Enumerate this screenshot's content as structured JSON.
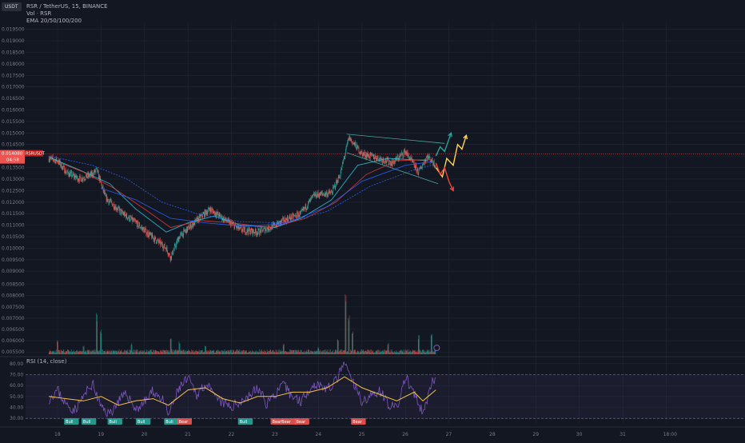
{
  "header": {
    "symbol_line": "RSR / TetherUS, 15, BINANCE",
    "vol_line": "Vol · RSR",
    "ema_line": "EMA 20/50/100/200",
    "currency_badge": "USDT",
    "rsi_title": "RSI (14, close)"
  },
  "colors": {
    "background": "#131722",
    "grid": "#1f2431",
    "up": "#26a69a",
    "down": "#ef5350",
    "ema_teal": "#26c6da",
    "ema_blue": "#2962ff",
    "ema_red": "#e53935",
    "rsi_line": "#7e57c2",
    "rsi_signal": "#f5c342",
    "arrow_yellow": "#ffd54f",
    "arrow_green": "#26a69a",
    "arrow_red": "#f44336"
  },
  "price_markers": {
    "current_price": "0.014088",
    "countdown": "04:58",
    "symbol_tag": "RSRUSDT"
  },
  "chart_data": [
    {
      "type": "candlestick",
      "title": "RSR / TetherUS, 15, BINANCE",
      "y_ticks": [
        "0.019500",
        "0.019000",
        "0.018500",
        "0.018000",
        "0.017500",
        "0.017000",
        "0.016500",
        "0.016000",
        "0.015500",
        "0.015000",
        "0.014500",
        "0.014000",
        "0.013500",
        "0.013000",
        "0.012500",
        "0.012000",
        "0.011500",
        "0.011000",
        "0.010500",
        "0.010000",
        "0.009500",
        "0.009000"
      ],
      "ylim": [
        0.0088,
        0.0198
      ],
      "x_ticks": [
        "18",
        "19",
        "20",
        "21",
        "22",
        "23",
        "24",
        "25",
        "26",
        "27",
        "28",
        "29",
        "30",
        "31",
        "18:00"
      ],
      "close_path": {
        "points": [
          {
            "x": 17.8,
            "y": 0.0139
          },
          {
            "x": 18.0,
            "y": 0.0138
          },
          {
            "x": 18.2,
            "y": 0.0133
          },
          {
            "x": 18.5,
            "y": 0.013
          },
          {
            "x": 18.8,
            "y": 0.0132
          },
          {
            "x": 18.9,
            "y": 0.0134
          },
          {
            "x": 19.1,
            "y": 0.0122
          },
          {
            "x": 19.5,
            "y": 0.0115
          },
          {
            "x": 19.8,
            "y": 0.0111
          },
          {
            "x": 20.1,
            "y": 0.0106
          },
          {
            "x": 20.5,
            "y": 0.01
          },
          {
            "x": 20.6,
            "y": 0.0096
          },
          {
            "x": 20.8,
            "y": 0.0105
          },
          {
            "x": 21.2,
            "y": 0.0112
          },
          {
            "x": 21.5,
            "y": 0.0117
          },
          {
            "x": 21.8,
            "y": 0.0113
          },
          {
            "x": 22.2,
            "y": 0.0108
          },
          {
            "x": 22.6,
            "y": 0.0107
          },
          {
            "x": 22.9,
            "y": 0.0109
          },
          {
            "x": 23.2,
            "y": 0.0112
          },
          {
            "x": 23.6,
            "y": 0.0115
          },
          {
            "x": 23.9,
            "y": 0.0123
          },
          {
            "x": 24.3,
            "y": 0.0124
          },
          {
            "x": 24.5,
            "y": 0.0132
          },
          {
            "x": 24.7,
            "y": 0.0148
          },
          {
            "x": 25.0,
            "y": 0.0141
          },
          {
            "x": 25.4,
            "y": 0.0139
          },
          {
            "x": 25.7,
            "y": 0.0137
          },
          {
            "x": 26.0,
            "y": 0.0142
          },
          {
            "x": 26.3,
            "y": 0.0133
          },
          {
            "x": 26.5,
            "y": 0.014
          },
          {
            "x": 26.7,
            "y": 0.0136
          }
        ]
      },
      "ema_lines": [
        {
          "points": [
            {
              "x": 17.8,
              "y": 0.01395
            },
            {
              "x": 18.5,
              "y": 0.0134
            },
            {
              "x": 19.2,
              "y": 0.0128
            },
            {
              "x": 19.8,
              "y": 0.0117
            },
            {
              "x": 20.5,
              "y": 0.0107
            },
            {
              "x": 21.0,
              "y": 0.0111
            },
            {
              "x": 21.6,
              "y": 0.0114
            },
            {
              "x": 22.2,
              "y": 0.011
            },
            {
              "x": 23.0,
              "y": 0.0109
            },
            {
              "x": 23.6,
              "y": 0.0113
            },
            {
              "x": 24.3,
              "y": 0.0121
            },
            {
              "x": 24.9,
              "y": 0.0136
            },
            {
              "x": 25.6,
              "y": 0.0139
            },
            {
              "x": 26.5,
              "y": 0.0138
            }
          ]
        },
        {
          "points": [
            {
              "x": 17.8,
              "y": 0.0139
            },
            {
              "x": 18.6,
              "y": 0.0133
            },
            {
              "x": 19.3,
              "y": 0.0126
            },
            {
              "x": 20.0,
              "y": 0.0117
            },
            {
              "x": 20.6,
              "y": 0.0109
            },
            {
              "x": 21.3,
              "y": 0.0112
            },
            {
              "x": 22.0,
              "y": 0.0111
            },
            {
              "x": 22.9,
              "y": 0.0109
            },
            {
              "x": 23.7,
              "y": 0.0113
            },
            {
              "x": 24.4,
              "y": 0.012
            },
            {
              "x": 25.1,
              "y": 0.0132
            },
            {
              "x": 25.8,
              "y": 0.0138
            },
            {
              "x": 26.6,
              "y": 0.01385
            }
          ]
        },
        {
          "points": [
            {
              "x": 19.0,
              "y": 0.0126
            },
            {
              "x": 19.8,
              "y": 0.0121
            },
            {
              "x": 20.6,
              "y": 0.0113
            },
            {
              "x": 21.4,
              "y": 0.0111
            },
            {
              "x": 22.3,
              "y": 0.01095
            },
            {
              "x": 23.2,
              "y": 0.01105
            },
            {
              "x": 24.2,
              "y": 0.0118
            },
            {
              "x": 25.0,
              "y": 0.0129
            },
            {
              "x": 26.0,
              "y": 0.0136
            },
            {
              "x": 26.6,
              "y": 0.01375
            }
          ]
        },
        {
          "points": [
            {
              "x": 17.8,
              "y": 0.014
            },
            {
              "x": 18.8,
              "y": 0.0136
            },
            {
              "x": 19.6,
              "y": 0.013
            },
            {
              "x": 20.4,
              "y": 0.012
            },
            {
              "x": 21.2,
              "y": 0.0115
            },
            {
              "x": 22.2,
              "y": 0.01115
            },
            {
              "x": 23.2,
              "y": 0.0111
            },
            {
              "x": 24.2,
              "y": 0.0116
            },
            {
              "x": 25.2,
              "y": 0.0127
            },
            {
              "x": 26.2,
              "y": 0.0134
            },
            {
              "x": 26.6,
              "y": 0.0136
            }
          ]
        }
      ],
      "trend_lines": [
        {
          "from": {
            "x": 24.65,
            "y": 0.01495
          },
          "to": {
            "x": 26.9,
            "y": 0.01455
          }
        },
        {
          "from": {
            "x": 24.65,
            "y": 0.01415
          },
          "to": {
            "x": 26.75,
            "y": 0.0128
          }
        }
      ],
      "projections": [
        {
          "points": [
            {
              "x": 26.7,
              "y": 0.014
            },
            {
              "x": 26.8,
              "y": 0.0144
            },
            {
              "x": 26.9,
              "y": 0.0142
            },
            {
              "x": 27.05,
              "y": 0.015
            }
          ]
        },
        {
          "points": [
            {
              "x": 26.7,
              "y": 0.0135
            },
            {
              "x": 26.85,
              "y": 0.0131
            },
            {
              "x": 26.95,
              "y": 0.0139
            },
            {
              "x": 27.1,
              "y": 0.0136
            },
            {
              "x": 27.2,
              "y": 0.0145
            },
            {
              "x": 27.3,
              "y": 0.0143
            },
            {
              "x": 27.4,
              "y": 0.0149
            }
          ]
        },
        {
          "points": [
            {
              "x": 26.7,
              "y": 0.0137
            },
            {
              "x": 26.8,
              "y": 0.0132
            },
            {
              "x": 26.9,
              "y": 0.0135
            },
            {
              "x": 27.0,
              "y": 0.0129
            },
            {
              "x": 27.1,
              "y": 0.0125
            }
          ]
        }
      ],
      "last_price": 0.014088
    },
    {
      "type": "bar",
      "title": "Vol · RSR",
      "y_ticks": [
        "0.008500",
        "0.008000",
        "0.007500",
        "0.007000",
        "0.006500",
        "0.006000",
        "0.005500"
      ],
      "ylim": [
        0.0054,
        0.0087
      ],
      "spikes": [
        {
          "x": 18.0,
          "v": 0.2
        },
        {
          "x": 18.6,
          "v": 0.12
        },
        {
          "x": 18.9,
          "v": 0.55
        },
        {
          "x": 19.0,
          "v": 0.35
        },
        {
          "x": 19.7,
          "v": 0.15
        },
        {
          "x": 20.6,
          "v": 0.22
        },
        {
          "x": 20.8,
          "v": 0.18
        },
        {
          "x": 21.4,
          "v": 0.12
        },
        {
          "x": 23.2,
          "v": 0.15
        },
        {
          "x": 24.0,
          "v": 0.1
        },
        {
          "x": 24.45,
          "v": 0.2
        },
        {
          "x": 24.62,
          "v": 0.85
        },
        {
          "x": 24.7,
          "v": 0.55
        },
        {
          "x": 24.78,
          "v": 0.3
        },
        {
          "x": 25.6,
          "v": 0.15
        },
        {
          "x": 26.3,
          "v": 0.25
        },
        {
          "x": 26.6,
          "v": 0.3
        }
      ]
    },
    {
      "type": "line",
      "title": "RSI (14, close)",
      "y_ticks": [
        "80.00",
        "70.00",
        "60.00",
        "50.00",
        "40.00",
        "30.00"
      ],
      "ylim": [
        25,
        85
      ],
      "bands": [
        30,
        70
      ],
      "rsi_series": {
        "points": [
          {
            "x": 17.8,
            "y": 48
          },
          {
            "x": 18.0,
            "y": 56
          },
          {
            "x": 18.2,
            "y": 42
          },
          {
            "x": 18.4,
            "y": 38
          },
          {
            "x": 18.6,
            "y": 50
          },
          {
            "x": 18.8,
            "y": 62
          },
          {
            "x": 19.0,
            "y": 40
          },
          {
            "x": 19.2,
            "y": 34
          },
          {
            "x": 19.4,
            "y": 46
          },
          {
            "x": 19.6,
            "y": 52
          },
          {
            "x": 19.8,
            "y": 38
          },
          {
            "x": 20.0,
            "y": 45
          },
          {
            "x": 20.2,
            "y": 55
          },
          {
            "x": 20.4,
            "y": 48
          },
          {
            "x": 20.55,
            "y": 33
          },
          {
            "x": 20.8,
            "y": 58
          },
          {
            "x": 21.0,
            "y": 66
          },
          {
            "x": 21.2,
            "y": 52
          },
          {
            "x": 21.4,
            "y": 62
          },
          {
            "x": 21.6,
            "y": 50
          },
          {
            "x": 21.8,
            "y": 44
          },
          {
            "x": 22.0,
            "y": 40
          },
          {
            "x": 22.2,
            "y": 46
          },
          {
            "x": 22.4,
            "y": 50
          },
          {
            "x": 22.6,
            "y": 58
          },
          {
            "x": 22.8,
            "y": 44
          },
          {
            "x": 23.0,
            "y": 52
          },
          {
            "x": 23.2,
            "y": 60
          },
          {
            "x": 23.4,
            "y": 50
          },
          {
            "x": 23.6,
            "y": 46
          },
          {
            "x": 23.8,
            "y": 58
          },
          {
            "x": 24.0,
            "y": 62
          },
          {
            "x": 24.2,
            "y": 56
          },
          {
            "x": 24.4,
            "y": 64
          },
          {
            "x": 24.6,
            "y": 80
          },
          {
            "x": 24.8,
            "y": 62
          },
          {
            "x": 25.0,
            "y": 46
          },
          {
            "x": 25.2,
            "y": 50
          },
          {
            "x": 25.4,
            "y": 56
          },
          {
            "x": 25.6,
            "y": 44
          },
          {
            "x": 25.8,
            "y": 38
          },
          {
            "x": 26.0,
            "y": 68
          },
          {
            "x": 26.2,
            "y": 52
          },
          {
            "x": 26.4,
            "y": 34
          },
          {
            "x": 26.6,
            "y": 62
          },
          {
            "x": 26.7,
            "y": 64
          }
        ]
      },
      "rsi_signal": {
        "points": [
          {
            "x": 17.8,
            "y": 50
          },
          {
            "x": 18.2,
            "y": 48
          },
          {
            "x": 18.6,
            "y": 46
          },
          {
            "x": 19.0,
            "y": 50
          },
          {
            "x": 19.4,
            "y": 42
          },
          {
            "x": 19.8,
            "y": 46
          },
          {
            "x": 20.2,
            "y": 48
          },
          {
            "x": 20.55,
            "y": 42
          },
          {
            "x": 21.0,
            "y": 56
          },
          {
            "x": 21.4,
            "y": 58
          },
          {
            "x": 21.8,
            "y": 48
          },
          {
            "x": 22.2,
            "y": 44
          },
          {
            "x": 22.6,
            "y": 50
          },
          {
            "x": 23.0,
            "y": 50
          },
          {
            "x": 23.4,
            "y": 54
          },
          {
            "x": 23.8,
            "y": 54
          },
          {
            "x": 24.2,
            "y": 58
          },
          {
            "x": 24.6,
            "y": 68
          },
          {
            "x": 25.0,
            "y": 58
          },
          {
            "x": 25.4,
            "y": 52
          },
          {
            "x": 25.8,
            "y": 46
          },
          {
            "x": 26.2,
            "y": 54
          },
          {
            "x": 26.4,
            "y": 46
          },
          {
            "x": 26.7,
            "y": 56
          }
        ]
      },
      "labels": [
        {
          "x": 18.15,
          "text": "Bull",
          "kind": "bull"
        },
        {
          "x": 18.55,
          "text": "Bull",
          "kind": "bull"
        },
        {
          "x": 19.15,
          "text": "Bull",
          "kind": "bull"
        },
        {
          "x": 19.8,
          "text": "Bull",
          "kind": "bull"
        },
        {
          "x": 20.45,
          "text": "Bull",
          "kind": "bull"
        },
        {
          "x": 20.75,
          "text": "Bear",
          "kind": "bear"
        },
        {
          "x": 22.15,
          "text": "Bull",
          "kind": "bull"
        },
        {
          "x": 22.9,
          "text": "BearBear",
          "kind": "bear"
        },
        {
          "x": 23.45,
          "text": "Bear",
          "kind": "bear"
        },
        {
          "x": 24.75,
          "text": "Bear",
          "kind": "bear"
        }
      ]
    }
  ]
}
